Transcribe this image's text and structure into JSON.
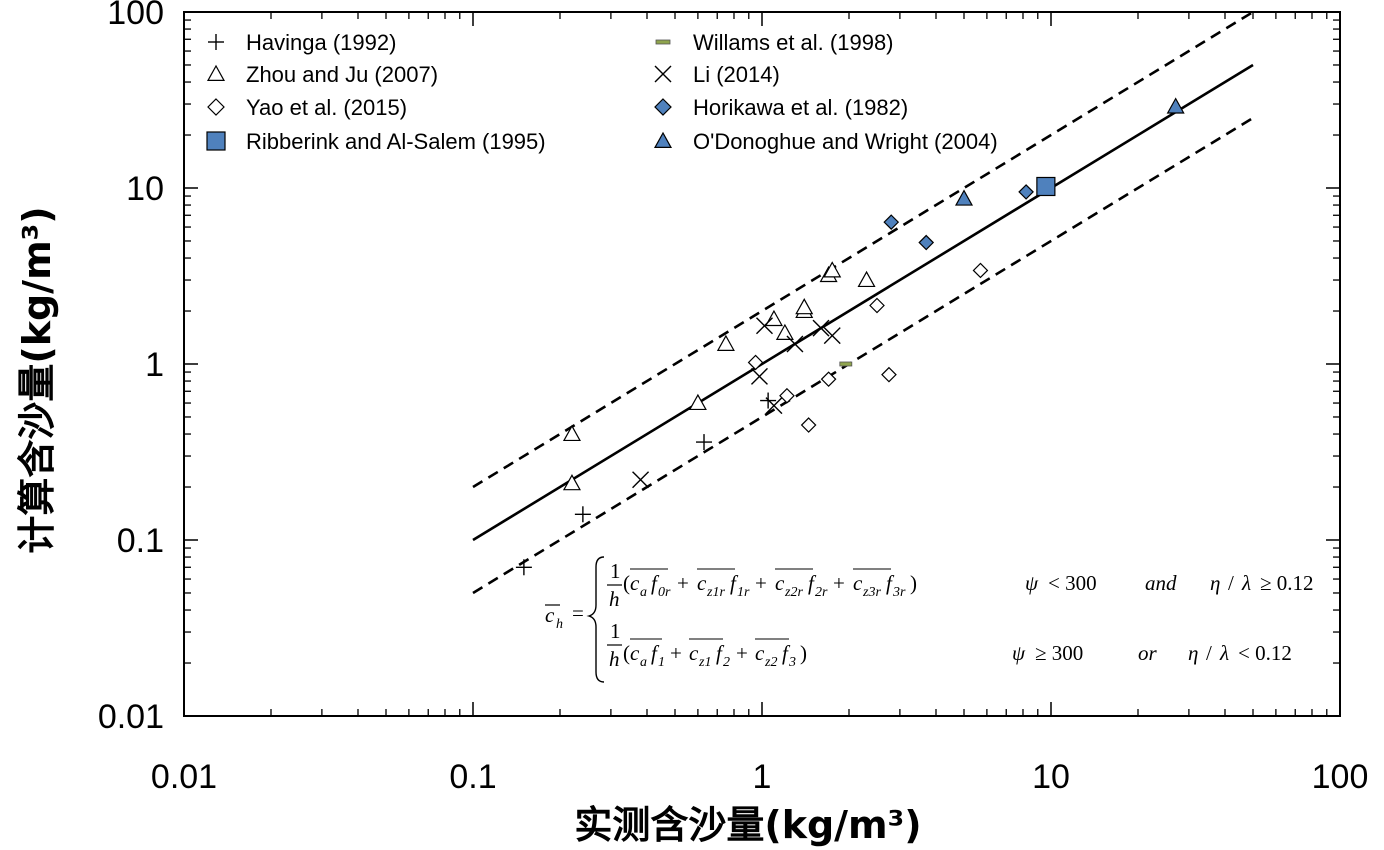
{
  "chart_data": {
    "type": "scatter",
    "title": "",
    "xlabel": "实测含沙量(kg/m³)",
    "ylabel": "计算含沙量(kg/m³)",
    "xscale": "log",
    "yscale": "log",
    "xlim": [
      0.01,
      100
    ],
    "ylim": [
      0.01,
      100
    ],
    "xticks": [
      "0.01",
      "0.1",
      "1",
      "10",
      "100"
    ],
    "yticks": [
      "0.01",
      "0.1",
      "1",
      "10",
      "100"
    ],
    "grid": false,
    "legend_position": "top",
    "series": [
      {
        "name": "Havinga (1992)",
        "marker": "plus",
        "color": "#000000",
        "points": [
          [
            0.15,
            0.07
          ],
          [
            0.24,
            0.14
          ],
          [
            0.63,
            0.36
          ],
          [
            1.05,
            0.62
          ]
        ]
      },
      {
        "name": "Willams et al. (1998)",
        "marker": "dash",
        "color": "#8fa44d",
        "points": [
          [
            1.95,
            1.0
          ]
        ]
      },
      {
        "name": "Zhou and Ju (2007)",
        "marker": "triangle-open",
        "color": "#000000",
        "points": [
          [
            0.22,
            0.4
          ],
          [
            0.22,
            0.21
          ],
          [
            0.6,
            0.6
          ],
          [
            0.75,
            1.3
          ],
          [
            1.1,
            1.8
          ],
          [
            1.2,
            1.5
          ],
          [
            1.4,
            2.0
          ],
          [
            1.4,
            2.1
          ],
          [
            1.7,
            3.2
          ],
          [
            1.75,
            3.4
          ],
          [
            2.3,
            3.0
          ]
        ]
      },
      {
        "name": "Li (2014)",
        "marker": "x",
        "color": "#000000",
        "points": [
          [
            0.38,
            0.22
          ],
          [
            0.98,
            0.85
          ],
          [
            1.02,
            1.65
          ],
          [
            1.1,
            0.58
          ],
          [
            1.3,
            1.3
          ],
          [
            1.6,
            1.6
          ],
          [
            1.75,
            1.45
          ]
        ]
      },
      {
        "name": "Yao et al. (2015)",
        "marker": "diamond-open",
        "color": "#000000",
        "points": [
          [
            0.95,
            1.02
          ],
          [
            1.22,
            0.66
          ],
          [
            1.45,
            0.45
          ],
          [
            1.7,
            0.82
          ],
          [
            2.5,
            2.15
          ],
          [
            2.75,
            0.87
          ],
          [
            5.7,
            3.4
          ]
        ]
      },
      {
        "name": "Horikawa et al. (1982)",
        "marker": "diamond-filled",
        "color": "#4f81bd",
        "points": [
          [
            2.8,
            6.4
          ],
          [
            3.7,
            4.9
          ],
          [
            8.2,
            9.5
          ]
        ]
      },
      {
        "name": "Ribberink and Al-Salem (1995)",
        "marker": "square-filled",
        "color": "#4f81bd",
        "points": [
          [
            9.6,
            10.2
          ]
        ]
      },
      {
        "name": "O'Donoghue and Wright (2004)",
        "marker": "triangle-filled",
        "color": "#4f81bd",
        "points": [
          [
            5.0,
            8.7
          ],
          [
            27.0,
            29.0
          ]
        ]
      }
    ],
    "reference_lines": [
      {
        "style": "solid",
        "x": [
          0.1,
          50
        ],
        "y": [
          0.1,
          50
        ]
      },
      {
        "style": "dashed",
        "x": [
          0.1,
          50
        ],
        "y": [
          0.2,
          100
        ]
      },
      {
        "style": "dashed",
        "x": [
          0.1,
          50
        ],
        "y": [
          0.05,
          25
        ]
      }
    ],
    "annotation": {
      "lhs": "c_h =",
      "case1_condition": "ψ < 300   and   η / λ ≥ 0.12",
      "case2_condition": "ψ ≥ 300   or   η / λ < 0.12",
      "case1_terms": [
        "c_a f_0r",
        "c_z1r f_1r",
        "c_z2r f_2r",
        "c_z3r f_3r"
      ],
      "case2_terms": [
        "c_a f_1",
        "c_z1 f_2",
        "c_z2 f_3"
      ]
    }
  }
}
